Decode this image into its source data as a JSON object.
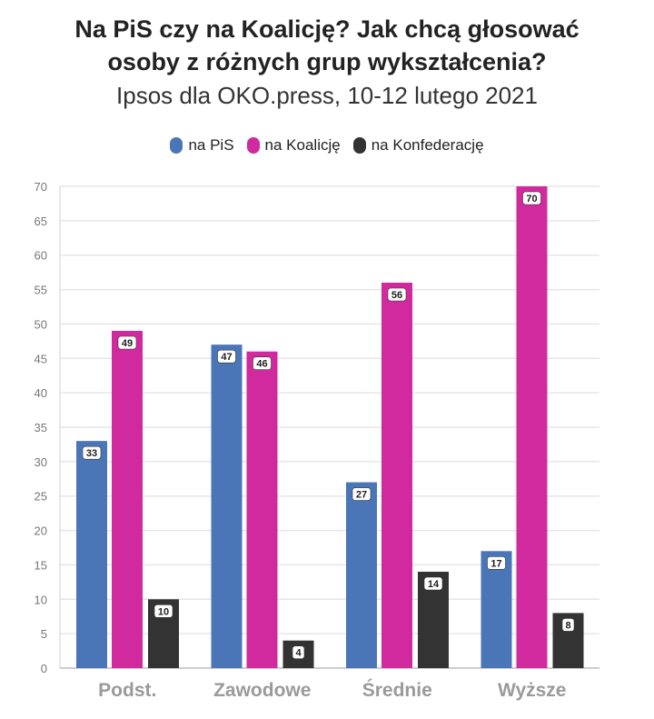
{
  "header": {
    "title_line1": "Na PiS czy na Koalicję? Jak chcą głosować",
    "title_line2": "osoby z różnych grup wykształcenia?",
    "subtitle": "Ipsos dla OKO.press, 10-12 lutego 2021"
  },
  "colors": {
    "pis": "#4a76b8",
    "koalicja": "#d12a9f",
    "konfederacja": "#333333",
    "grid": "#e6e6e6",
    "axis": "#777777"
  },
  "legend": {
    "items": [
      {
        "label": "na PiS",
        "color_key": "pis"
      },
      {
        "label": "na Koalicję",
        "color_key": "koalicja"
      },
      {
        "label": "na Konfederację",
        "color_key": "konfederacja"
      }
    ]
  },
  "chart_data": {
    "type": "bar",
    "title": "Na PiS czy na Koalicję? Jak chcą głosować osoby z różnych grup wykształcenia?",
    "subtitle": "Ipsos dla OKO.press, 10-12 lutego 2021",
    "categories": [
      "Podst.",
      "Zawodowe",
      "Średnie",
      "Wyższe"
    ],
    "series": [
      {
        "name": "na PiS",
        "color_key": "pis",
        "values": [
          33,
          47,
          27,
          17
        ]
      },
      {
        "name": "na Koalicję",
        "color_key": "koalicja",
        "values": [
          49,
          46,
          56,
          70
        ]
      },
      {
        "name": "na Konfederację",
        "color_key": "konfederacja",
        "values": [
          10,
          4,
          14,
          8
        ]
      }
    ],
    "ylim": [
      0,
      70
    ],
    "yticks": [
      0,
      5,
      10,
      15,
      20,
      25,
      30,
      35,
      40,
      45,
      50,
      55,
      60,
      65,
      70
    ],
    "xlabel": "",
    "ylabel": "",
    "grid": true,
    "legend_position": "top-center"
  }
}
